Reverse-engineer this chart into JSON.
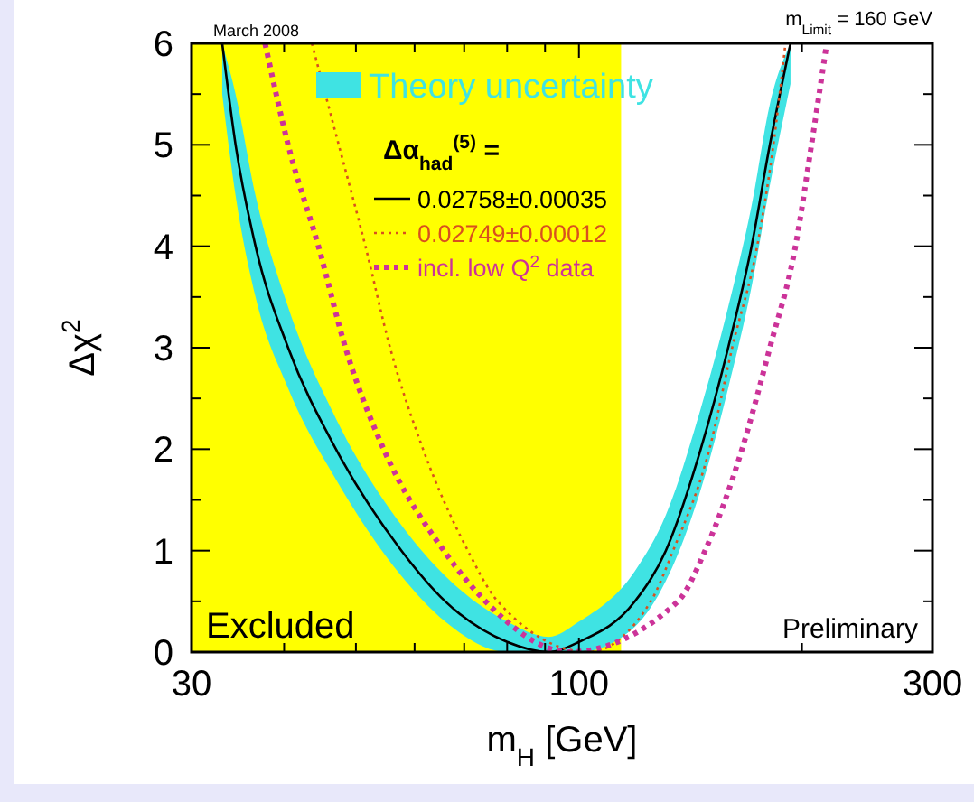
{
  "chart_data": {
    "type": "line",
    "xlabel": "m$_{H}$ [GeV]",
    "ylabel": "Δχ$^{2}$",
    "legend_title": "Δα$_{had}$$^{(5)}$ =",
    "log": "x",
    "xlim": [
      30,
      300
    ],
    "ylim": [
      0,
      6
    ],
    "xticks": [
      30,
      {
        "value": 40,
        "label": null
      },
      {
        "value": 50,
        "label": null
      },
      {
        "value": 60,
        "label": null
      },
      {
        "value": 70,
        "label": null
      },
      {
        "value": 80,
        "label": null
      },
      {
        "value": 90,
        "label": null
      },
      100,
      {
        "value": 200,
        "label": null
      },
      300
    ],
    "yticks": [
      0,
      {
        "value": 0.5,
        "label": null
      },
      1,
      {
        "value": 1.5,
        "label": null
      },
      2,
      {
        "value": 2.5,
        "label": null
      },
      3,
      {
        "value": 3.5,
        "label": null
      },
      4,
      {
        "value": 4.5,
        "label": null
      },
      5,
      {
        "value": 5.5,
        "label": null
      },
      6
    ],
    "legend": "top",
    "grid": false,
    "series": [
      {
        "name": "0.02758±0.00035",
        "color": "#000000",
        "line_style": "solid",
        "x": [
          33,
          34.4,
          36.6,
          40.5,
          47,
          57.6,
          66,
          80,
          91,
          100,
          119,
          131,
          146,
          159,
          171,
          181,
          193
        ],
        "values": [
          6,
          5,
          4,
          3,
          2,
          1,
          0.5,
          0.1,
          0,
          0.1,
          0.5,
          1,
          2,
          3,
          4,
          5,
          6
        ],
        "lower": [
          5.5,
          4.5,
          3.5,
          2.6,
          1.7,
          0.75,
          0.3,
          0,
          0,
          0,
          0.25,
          0.7,
          1.6,
          2.6,
          3.6,
          4.6,
          5.6
        ],
        "upper": [
          6,
          5.5,
          4.5,
          3.4,
          2.3,
          1.25,
          0.75,
          0.3,
          0.15,
          0.3,
          0.8,
          1.35,
          2.4,
          3.4,
          4.4,
          5.4,
          6
        ]
      },
      {
        "name": "0.02749±0.00012",
        "color": "#d9501e",
        "line_style": "dotted",
        "x": [
          43.6,
          47.4,
          51.5,
          55.6,
          61.6,
          70.8,
          77.7,
          103,
          125,
          134,
          150,
          161,
          174,
          183,
          190
        ],
        "values": [
          6,
          5,
          4,
          3,
          2,
          1,
          0.5,
          0,
          0.5,
          1,
          2,
          3,
          4,
          5,
          6
        ]
      },
      {
        "name": "incl. low Q$^{2}$ data",
        "color": "#cc3399",
        "line_style": "dotted",
        "x": [
          37.7,
          40.5,
          44.5,
          48.4,
          54.5,
          65.7,
          74.8,
          97,
          136,
          148,
          166,
          181,
          196,
          206,
          216
        ],
        "values": [
          6,
          5,
          4,
          3,
          2,
          1,
          0.5,
          0,
          0.5,
          1,
          2,
          3,
          4,
          5,
          6
        ]
      }
    ],
    "bands": [
      {
        "axis": "x",
        "from": 30,
        "to": 114,
        "label": "Excluded",
        "color": "#ffff00"
      }
    ],
    "annotations": [
      "March 2008",
      "m$_{Limit}$ = 160 GeV",
      "Preliminary",
      "Theory uncertainty"
    ]
  }
}
